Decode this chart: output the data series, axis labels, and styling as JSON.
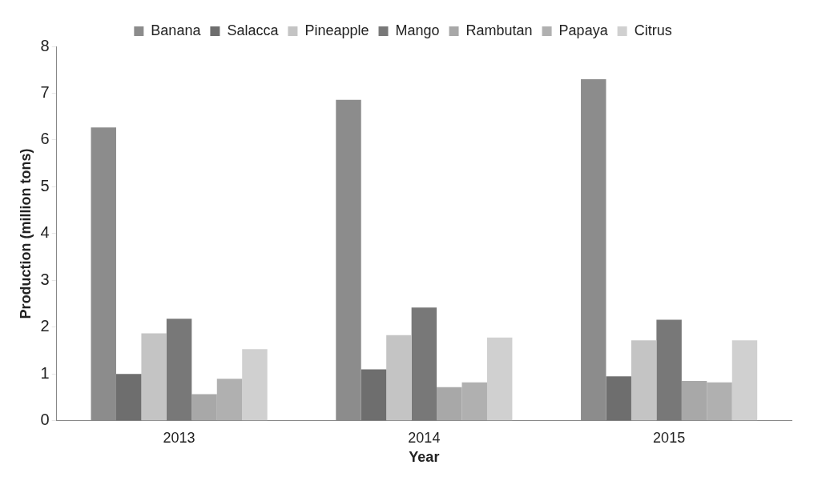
{
  "chart_data": {
    "type": "bar",
    "xlabel": "Year",
    "ylabel": "Production (million tons)",
    "categories": [
      "2013",
      "2014",
      "2015"
    ],
    "series": [
      {
        "name": "Banana",
        "color": "#8c8c8c",
        "values": [
          6.27,
          6.86,
          7.3
        ]
      },
      {
        "name": "Salacca",
        "color": "#6e6e6e",
        "values": [
          1.0,
          1.1,
          0.95
        ]
      },
      {
        "name": "Pineapple",
        "color": "#c4c4c4",
        "values": [
          1.87,
          1.83,
          1.72
        ]
      },
      {
        "name": "Mango",
        "color": "#787878",
        "values": [
          2.18,
          2.42,
          2.16
        ]
      },
      {
        "name": "Rambutan",
        "color": "#a8a8a8",
        "values": [
          0.57,
          0.72,
          0.85
        ]
      },
      {
        "name": "Papaya",
        "color": "#b0b0b0",
        "values": [
          0.9,
          0.82,
          0.82
        ]
      },
      {
        "name": "Citrus",
        "color": "#d0d0d0",
        "values": [
          1.53,
          1.78,
          1.72
        ]
      }
    ],
    "ylim": [
      0,
      8
    ],
    "yticks": [
      0,
      1,
      2,
      3,
      4,
      5,
      6,
      7,
      8
    ],
    "grid": false,
    "legend": "top"
  }
}
